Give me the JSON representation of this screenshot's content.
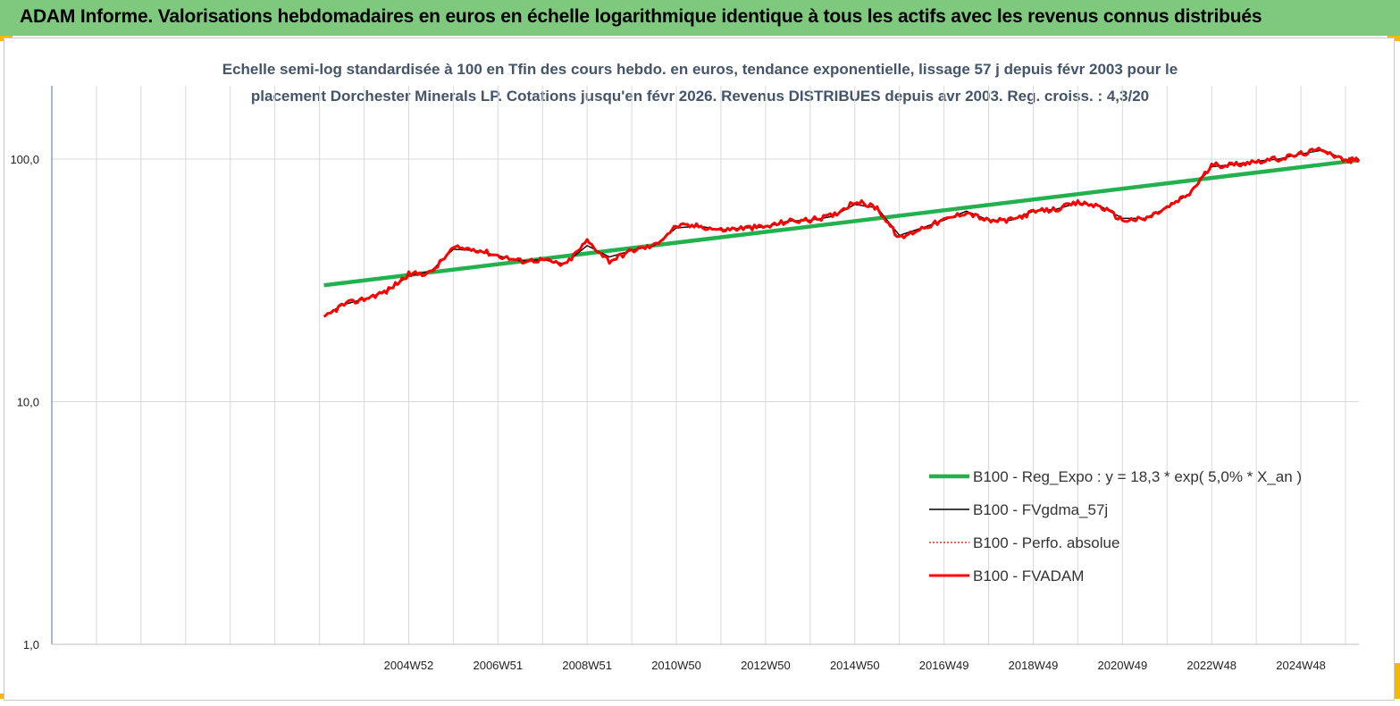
{
  "header": {
    "title": "ADAM Informe. Valorisations hebdomadaires en euros en échelle logarithmique identique à tous les actifs avec les revenus connus distribués"
  },
  "colors": {
    "banner": "#7fc97f",
    "corner_marker": "#f5b800",
    "subtitle": "#44546a",
    "trend": "#22b14c",
    "smooth": "#000000",
    "perf": "#e00000",
    "adam": "#ff0000"
  },
  "chart_data": {
    "type": "line",
    "title_line1": "Echelle semi-log standardisée à 100 en Tfin des cours hebdo. en euros, tendance exponentielle, lissage 57 j depuis févr 2003 pour le",
    "title_line2": "placement Dorchester Minerals LP. Cotations jusqu'en févr 2026. Revenus DISTRIBUES depuis avr 2003. Reg. croiss. : 4,3/20",
    "y_scale": "log",
    "ylim": [
      1,
      200
    ],
    "y_ticks": [
      {
        "value": 1,
        "label": "1,0"
      },
      {
        "value": 10,
        "label": "10,0"
      },
      {
        "value": 100,
        "label": "100,0"
      }
    ],
    "xlim": [
      1996.0,
      2025.3
    ],
    "x_tick_labels": [
      {
        "x": 2004.0,
        "label": "2004W52"
      },
      {
        "x": 2006.0,
        "label": "2006W51"
      },
      {
        "x": 2008.0,
        "label": "2008W51"
      },
      {
        "x": 2010.0,
        "label": "2010W50"
      },
      {
        "x": 2012.0,
        "label": "2012W50"
      },
      {
        "x": 2014.0,
        "label": "2014W50"
      },
      {
        "x": 2016.0,
        "label": "2016W49"
      },
      {
        "x": 2018.0,
        "label": "2018W49"
      },
      {
        "x": 2020.0,
        "label": "2020W49"
      },
      {
        "x": 2022.0,
        "label": "2022W48"
      },
      {
        "x": 2024.0,
        "label": "2024W48"
      }
    ],
    "vertical_grid_x": [
      1997.0,
      1998.0,
      1999.0,
      2000.0,
      2001.0,
      2002.0,
      2003.0,
      2004.0,
      2005.0,
      2006.0,
      2007.0,
      2008.0,
      2009.0,
      2010.0,
      2011.0,
      2012.0,
      2013.0,
      2014.0,
      2015.0,
      2016.0,
      2017.0,
      2018.0,
      2019.0,
      2020.0,
      2021.0,
      2022.0,
      2023.0,
      2024.0,
      2025.0
    ],
    "grid": true,
    "legend_position": "lower-right",
    "series": [
      {
        "name": "B100 - Reg_Expo : y = 18,3 *  exp( 5,0% *  X_an )",
        "key": "trend",
        "style": "thick-green",
        "x": [
          2002.1,
          2025.3
        ],
        "y": [
          30.2,
          99.0
        ]
      },
      {
        "name": "B100 - FVgdma_57j",
        "key": "smooth",
        "style": "thin-black",
        "x": [
          2002.1,
          2002.5,
          2003.0,
          2003.5,
          2004.0,
          2004.5,
          2005.0,
          2005.5,
          2006.0,
          2006.5,
          2007.0,
          2007.5,
          2008.0,
          2008.5,
          2009.0,
          2009.5,
          2010.0,
          2010.5,
          2011.0,
          2011.5,
          2012.0,
          2012.5,
          2013.0,
          2013.5,
          2014.0,
          2014.5,
          2015.0,
          2015.5,
          2016.0,
          2016.5,
          2017.0,
          2017.5,
          2018.0,
          2018.5,
          2019.0,
          2019.5,
          2020.0,
          2020.5,
          2021.0,
          2021.5,
          2022.0,
          2022.5,
          2023.0,
          2023.5,
          2024.0,
          2024.5,
          2025.0,
          2025.3
        ],
        "y": [
          22.5,
          25.0,
          26.5,
          28.5,
          33.0,
          34.5,
          42.5,
          42.0,
          40.0,
          38.0,
          38.5,
          37.0,
          44.0,
          39.5,
          42.0,
          44.0,
          52.0,
          53.0,
          51.0,
          52.0,
          52.5,
          55.5,
          56.0,
          58.0,
          65.0,
          63.0,
          48.5,
          52.0,
          56.0,
          61.0,
          56.0,
          56.0,
          61.0,
          62.0,
          66.0,
          64.0,
          57.0,
          57.0,
          63.0,
          72.0,
          93.0,
          95.0,
          98.0,
          100.0,
          105.0,
          109.0,
          99.0,
          100.0
        ]
      },
      {
        "name": "B100 - Perfo. absolue",
        "key": "perf",
        "style": "dotted-red",
        "x": [
          2002.1,
          2002.5,
          2003.0,
          2003.5,
          2004.0,
          2004.5,
          2005.0,
          2005.5,
          2006.0,
          2006.5,
          2007.0,
          2007.5,
          2008.0,
          2008.5,
          2009.0,
          2009.5,
          2010.0,
          2010.5,
          2011.0,
          2011.5,
          2012.0,
          2012.5,
          2013.0,
          2013.5,
          2014.0,
          2014.5,
          2015.0,
          2015.5,
          2016.0,
          2016.5,
          2017.0,
          2017.5,
          2018.0,
          2018.5,
          2019.0,
          2019.5,
          2020.0,
          2020.5,
          2021.0,
          2021.5,
          2022.0,
          2022.5,
          2023.0,
          2023.5,
          2024.0,
          2024.5,
          2025.0,
          2025.3
        ],
        "y": [
          22.0,
          25.0,
          26.5,
          28.5,
          33.5,
          34.0,
          43.0,
          42.5,
          40.0,
          38.0,
          38.5,
          36.5,
          46.0,
          38.0,
          42.0,
          44.0,
          53.0,
          53.0,
          51.0,
          52.0,
          52.5,
          55.5,
          56.0,
          58.5,
          67.0,
          63.0,
          47.0,
          52.0,
          56.0,
          60.5,
          55.5,
          56.0,
          60.5,
          62.0,
          66.0,
          64.0,
          56.0,
          56.5,
          63.0,
          72.0,
          94.0,
          95.0,
          98.0,
          100.0,
          105.0,
          110.0,
          98.0,
          100.0
        ]
      },
      {
        "name": "B100 - FVADAM",
        "key": "adam",
        "style": "thick-red",
        "x": [
          2002.1,
          2002.5,
          2003.0,
          2003.5,
          2004.0,
          2004.5,
          2005.0,
          2005.5,
          2006.0,
          2006.5,
          2007.0,
          2007.5,
          2008.0,
          2008.5,
          2009.0,
          2009.5,
          2010.0,
          2010.5,
          2011.0,
          2011.5,
          2012.0,
          2012.5,
          2013.0,
          2013.5,
          2014.0,
          2014.5,
          2015.0,
          2015.5,
          2016.0,
          2016.5,
          2017.0,
          2017.5,
          2018.0,
          2018.5,
          2019.0,
          2019.5,
          2020.0,
          2020.5,
          2021.0,
          2021.5,
          2022.0,
          2022.5,
          2023.0,
          2023.5,
          2024.0,
          2024.5,
          2025.0,
          2025.3
        ],
        "y": [
          22.0,
          25.0,
          26.5,
          28.5,
          33.5,
          34.0,
          43.0,
          42.5,
          40.0,
          38.0,
          38.5,
          36.5,
          46.0,
          38.0,
          42.0,
          44.0,
          53.0,
          53.0,
          51.0,
          52.0,
          52.5,
          55.5,
          56.0,
          58.5,
          67.0,
          63.0,
          47.0,
          52.0,
          56.0,
          60.5,
          55.5,
          56.0,
          60.5,
          62.0,
          66.0,
          64.0,
          56.0,
          56.5,
          63.0,
          72.0,
          94.0,
          95.0,
          98.0,
          100.0,
          105.0,
          110.0,
          98.0,
          100.0
        ]
      }
    ]
  }
}
